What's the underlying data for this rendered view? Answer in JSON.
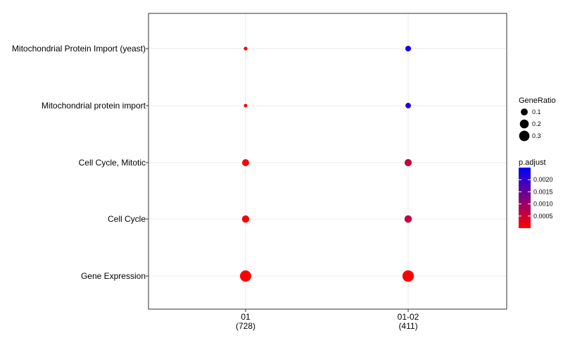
{
  "chart_data": {
    "type": "scatter",
    "title": "",
    "xlabel": "",
    "ylabel": "",
    "x_categories": [
      {
        "label": "01",
        "count": "(728)"
      },
      {
        "label": "01-02",
        "count": "(411)"
      }
    ],
    "y_categories": [
      "Mitochondrial Protein Import (yeast)",
      "Mitochondrial protein import",
      "Cell Cycle, Mitotic",
      "Cell Cycle",
      "Gene Expression"
    ],
    "points": [
      {
        "x": "01",
        "y": "Mitochondrial Protein Import (yeast)",
        "gene_ratio": 0.01,
        "p_adjust": 1e-05
      },
      {
        "x": "01-02",
        "y": "Mitochondrial Protein Import (yeast)",
        "gene_ratio": 0.055,
        "p_adjust": 0.0023
      },
      {
        "x": "01",
        "y": "Mitochondrial protein import",
        "gene_ratio": 0.008,
        "p_adjust": 1e-05
      },
      {
        "x": "01-02",
        "y": "Mitochondrial protein import",
        "gene_ratio": 0.05,
        "p_adjust": 0.0022
      },
      {
        "x": "01",
        "y": "Cell Cycle, Mitotic",
        "gene_ratio": 0.105,
        "p_adjust": 5e-05
      },
      {
        "x": "01-02",
        "y": "Cell Cycle, Mitotic",
        "gene_ratio": 0.11,
        "p_adjust": 0.0006
      },
      {
        "x": "01",
        "y": "Cell Cycle",
        "gene_ratio": 0.115,
        "p_adjust": 5e-05
      },
      {
        "x": "01-02",
        "y": "Cell Cycle",
        "gene_ratio": 0.12,
        "p_adjust": 0.0006
      },
      {
        "x": "01",
        "y": "Gene Expression",
        "gene_ratio": 0.37,
        "p_adjust": 1e-05
      },
      {
        "x": "01-02",
        "y": "Gene Expression",
        "gene_ratio": 0.39,
        "p_adjust": 2e-05
      }
    ],
    "legend": {
      "size_title": "GeneRatio",
      "size_entries": [
        {
          "label": "0.1",
          "value": 0.1
        },
        {
          "label": "0.2",
          "value": 0.2
        },
        {
          "label": "0.3",
          "value": 0.3
        }
      ],
      "color_title": "p.adjust",
      "color_entries": [
        {
          "label": "0.0020",
          "value": 0.002
        },
        {
          "label": "0.0015",
          "value": 0.0015
        },
        {
          "label": "0.0010",
          "value": 0.001
        },
        {
          "label": "0.0005",
          "value": 0.0005
        }
      ],
      "color_range": [
        0.0,
        0.0025
      ],
      "placement": "right"
    },
    "colors": {
      "low": "#FF0000",
      "high": "#0000FF",
      "grid": "#ebebeb",
      "border": "#333333"
    },
    "grid": true
  }
}
